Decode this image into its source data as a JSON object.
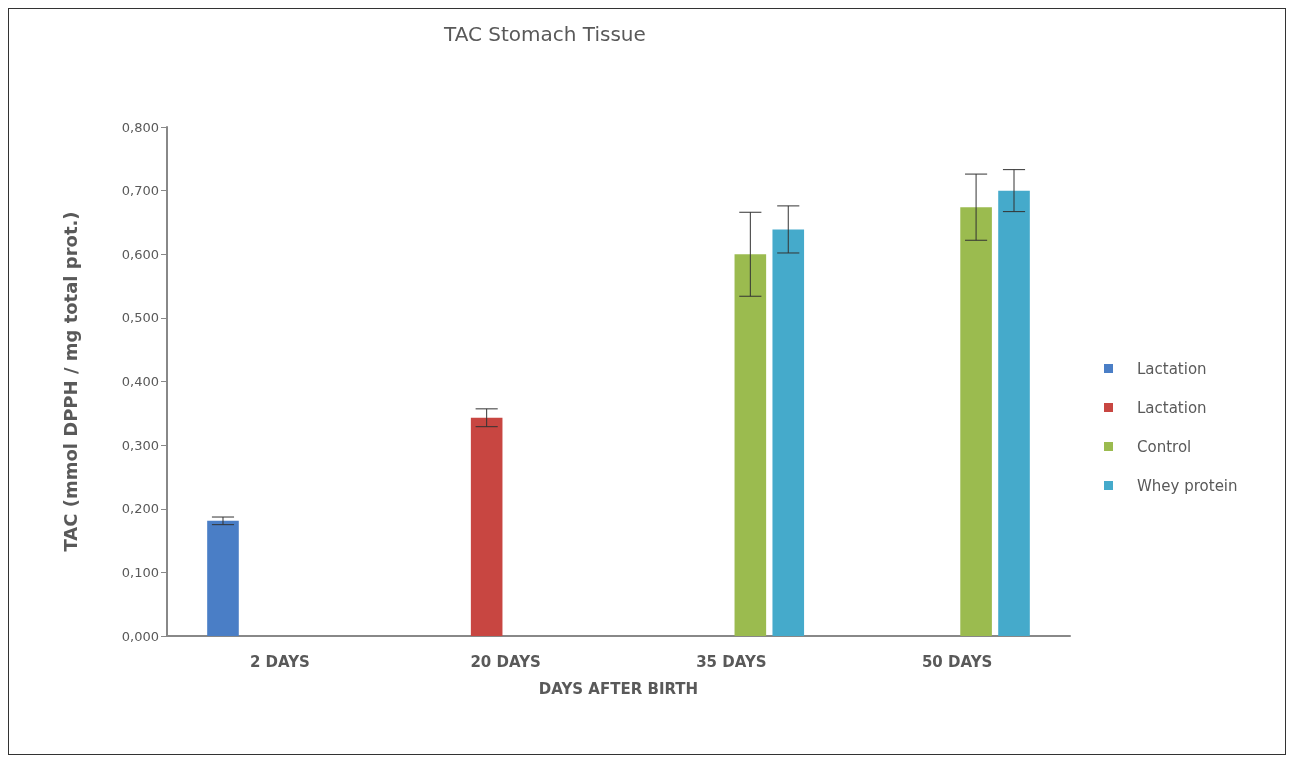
{
  "chart_data": {
    "type": "bar",
    "title": "TAC Stomach Tissue",
    "xlabel": "DAYS AFTER BIRTH",
    "ylabel": "TAC (mmol DPPH / mg total prot.)",
    "categories": [
      "2 DAYS",
      "20 DAYS",
      "35 DAYS",
      "50 DAYS"
    ],
    "series": [
      {
        "name": "Lactation",
        "color": "#4a7ec6",
        "values": [
          0.181,
          null,
          null,
          null
        ],
        "errors": [
          0.006,
          null,
          null,
          null
        ]
      },
      {
        "name": "Lactation",
        "color": "#c84641",
        "values": [
          null,
          0.343,
          null,
          null
        ],
        "errors": [
          null,
          0.014,
          null,
          null
        ]
      },
      {
        "name": "Control",
        "color": "#9bbb4f",
        "values": [
          null,
          null,
          0.6,
          0.674
        ],
        "errors": [
          null,
          null,
          0.066,
          0.052
        ]
      },
      {
        "name": "Whey protein",
        "color": "#45aacb",
        "values": [
          null,
          null,
          0.639,
          0.7
        ],
        "errors": [
          null,
          null,
          0.037,
          0.033
        ]
      }
    ],
    "ylim": [
      0,
      0.8
    ],
    "yticks": [
      {
        "value": 0,
        "label": "0,000"
      },
      {
        "value": 0.1,
        "label": "0,100"
      },
      {
        "value": 0.2,
        "label": "0,200"
      },
      {
        "value": 0.3,
        "label": "0,300"
      },
      {
        "value": 0.4,
        "label": "0,400"
      },
      {
        "value": 0.5,
        "label": "0,500"
      },
      {
        "value": 0.6,
        "label": "0,600"
      },
      {
        "value": 0.7,
        "label": "0,700"
      },
      {
        "value": 0.8,
        "label": "0,800"
      }
    ],
    "grid": false,
    "legend": "right"
  }
}
